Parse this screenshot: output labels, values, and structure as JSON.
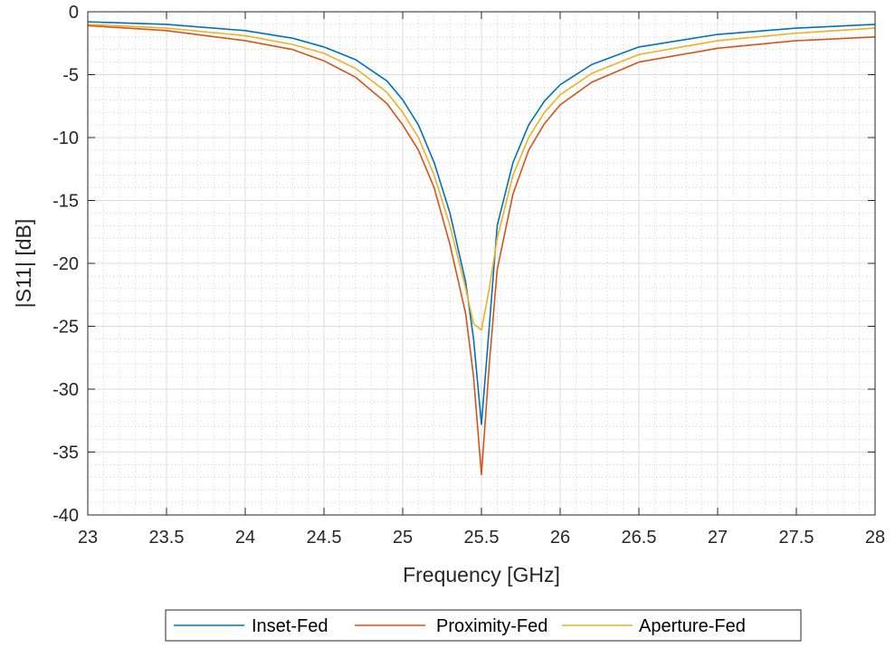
{
  "chart_data": {
    "type": "line",
    "xlabel": "Frequency [GHz]",
    "ylabel": "|S11| [dB]",
    "xlim": [
      23,
      28
    ],
    "ylim": [
      -40,
      0
    ],
    "xticks": [
      "23",
      "23.5",
      "24",
      "24.5",
      "25",
      "25.5",
      "26",
      "26.5",
      "27",
      "27.5",
      "28"
    ],
    "yticks": [
      "0",
      "-5",
      "-10",
      "-15",
      "-20",
      "-25",
      "-30",
      "-35",
      "-40"
    ],
    "grid": true,
    "minor_grid": true,
    "legend_position": "bottom",
    "series": [
      {
        "name": "Inset-Fed",
        "color": "#0072BD",
        "x": [
          23,
          23.5,
          24,
          24.3,
          24.5,
          24.7,
          24.9,
          25.0,
          25.1,
          25.2,
          25.3,
          25.4,
          25.45,
          25.5,
          25.55,
          25.6,
          25.7,
          25.8,
          25.9,
          26.0,
          26.2,
          26.5,
          27,
          27.5,
          28
        ],
        "y": [
          -0.8,
          -1.0,
          -1.5,
          -2.1,
          -2.8,
          -3.8,
          -5.5,
          -7.0,
          -9.0,
          -12.0,
          -16.0,
          -21.5,
          -26.0,
          -32.8,
          -25.0,
          -17.0,
          -12.0,
          -9.0,
          -7.1,
          -5.8,
          -4.2,
          -2.8,
          -1.8,
          -1.3,
          -1.0
        ]
      },
      {
        "name": "Proximity-Fed",
        "color": "#D95319",
        "x": [
          23,
          23.5,
          24,
          24.3,
          24.5,
          24.7,
          24.9,
          25.0,
          25.1,
          25.2,
          25.3,
          25.4,
          25.45,
          25.5,
          25.55,
          25.6,
          25.7,
          25.8,
          25.9,
          26.0,
          26.2,
          26.5,
          27,
          27.5,
          28
        ],
        "y": [
          -1.1,
          -1.5,
          -2.3,
          -3.0,
          -3.9,
          -5.2,
          -7.3,
          -9.0,
          -11.0,
          -14.0,
          -18.5,
          -24.0,
          -29.0,
          -36.8,
          -28.0,
          -20.5,
          -14.5,
          -11.0,
          -8.9,
          -7.4,
          -5.6,
          -4.0,
          -2.9,
          -2.3,
          -2.0
        ]
      },
      {
        "name": "Aperture-Fed",
        "color": "#EDB120",
        "x": [
          23,
          23.5,
          24,
          24.3,
          24.5,
          24.7,
          24.9,
          25.0,
          25.1,
          25.2,
          25.3,
          25.4,
          25.45,
          25.5,
          25.55,
          25.6,
          25.7,
          25.8,
          25.9,
          26.0,
          26.2,
          26.5,
          27,
          27.5,
          28
        ],
        "y": [
          -1.0,
          -1.3,
          -1.9,
          -2.6,
          -3.3,
          -4.5,
          -6.4,
          -8.0,
          -10.0,
          -13.0,
          -17.0,
          -22.0,
          -24.8,
          -25.3,
          -22.0,
          -18.0,
          -13.0,
          -10.0,
          -8.0,
          -6.6,
          -4.9,
          -3.4,
          -2.3,
          -1.7,
          -1.3
        ]
      }
    ]
  }
}
